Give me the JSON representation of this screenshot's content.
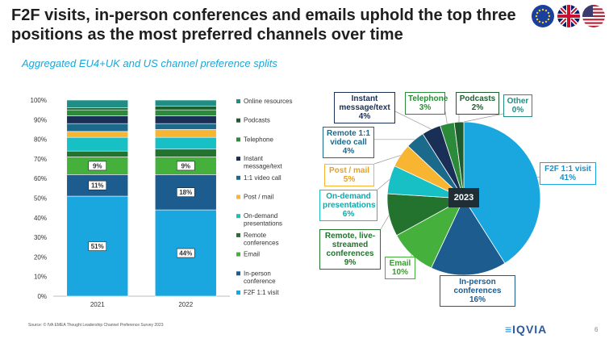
{
  "header": {
    "title": "F2F visits, in-person conferences and emails uphold the top three positions as the most preferred channels over time",
    "subtitle": "Aggregated EU4+UK and US channel preference splits"
  },
  "footer": {
    "source": "Source: © IVA EMEA Thought Leadership Channel Preference Survey 2023",
    "logo_text": "IQVIA",
    "page_number": "6"
  },
  "colors": {
    "f2f": "#1aa7e0",
    "inperson": "#1c5c8e",
    "email": "#45b03b",
    "remote": "#23732f",
    "ondemand": "#16c0c4",
    "post": "#f7b531",
    "remote11": "#1b6a8b",
    "instant": "#1a2f55",
    "telephone": "#2c8b3a",
    "podcasts": "#1e5e2e",
    "online": "#1e8e86"
  },
  "chart_data": [
    {
      "type": "bar",
      "stacked": true,
      "categories": [
        "2021",
        "2022"
      ],
      "ylim": [
        0,
        100
      ],
      "yticks": [
        "0%",
        "10%",
        "20%",
        "30%",
        "40%",
        "50%",
        "60%",
        "70%",
        "80%",
        "90%",
        "100%"
      ],
      "legend_position": "right",
      "series": [
        {
          "name": "F2F 1:1 visit",
          "color_key": "f2f",
          "values": [
            51,
            44
          ],
          "labels": [
            "51%",
            "44%"
          ]
        },
        {
          "name": "In-person conference",
          "color_key": "inperson",
          "values": [
            11,
            18
          ],
          "labels": [
            "11%",
            "18%"
          ]
        },
        {
          "name": "Email",
          "color_key": "email",
          "values": [
            9,
            9
          ],
          "labels": [
            "9%",
            "9%"
          ]
        },
        {
          "name": "Remote conferences",
          "color_key": "remote",
          "values": [
            3,
            4
          ],
          "labels": [
            "",
            ""
          ]
        },
        {
          "name": "On-demand presentations",
          "color_key": "ondemand",
          "values": [
            7,
            6
          ],
          "labels": [
            "",
            ""
          ]
        },
        {
          "name": "Post / mail",
          "color_key": "post",
          "values": [
            3,
            4
          ],
          "labels": [
            "",
            ""
          ]
        },
        {
          "name": "1:1 video call",
          "color_key": "remote11",
          "values": [
            4,
            3
          ],
          "labels": [
            "",
            ""
          ]
        },
        {
          "name": "Instant message/text",
          "color_key": "instant",
          "values": [
            4,
            4
          ],
          "labels": [
            "",
            ""
          ]
        },
        {
          "name": "Telephone",
          "color_key": "telephone",
          "values": [
            3,
            3
          ],
          "labels": [
            "",
            ""
          ]
        },
        {
          "name": "Podcasts",
          "color_key": "podcasts",
          "values": [
            1,
            2
          ],
          "labels": [
            "",
            ""
          ]
        },
        {
          "name": "Online resources",
          "color_key": "online",
          "values": [
            4,
            3
          ],
          "labels": [
            "",
            ""
          ]
        }
      ],
      "legend_order": [
        "Online resources",
        "Podcasts",
        "Telephone",
        "Instant message/text",
        "1:1 video call",
        "Post / mail",
        "On-demand presentations",
        "Remote conferences",
        "Email",
        "In-person conference",
        "F2F 1:1 visit"
      ]
    },
    {
      "type": "pie",
      "center_label": "2023",
      "slices": [
        {
          "name": "F2F 1:1 visit",
          "value": 41,
          "label": "41%",
          "color_key": "f2f"
        },
        {
          "name": "In-person conferences",
          "value": 16,
          "label": "16%",
          "color_key": "inperson"
        },
        {
          "name": "Email",
          "value": 10,
          "label": "10%",
          "color_key": "email"
        },
        {
          "name": "Remote, live-streamed conferences",
          "value": 9,
          "label": "9%",
          "color_key": "remote"
        },
        {
          "name": "On-demand presentations",
          "value": 6,
          "label": "6%",
          "color_key": "ondemand"
        },
        {
          "name": "Post / mail",
          "value": 5,
          "label": "5%",
          "color_key": "post"
        },
        {
          "name": "Remote 1:1 video call",
          "value": 4,
          "label": "4%",
          "color_key": "remote11"
        },
        {
          "name": "Instant message/text",
          "value": 4,
          "label": "4%",
          "color_key": "instant"
        },
        {
          "name": "Telephone",
          "value": 3,
          "label": "3%",
          "color_key": "telephone"
        },
        {
          "name": "Podcasts",
          "value": 2,
          "label": "2%",
          "color_key": "podcasts"
        },
        {
          "name": "Other",
          "value": 0,
          "label": "0%",
          "color_key": "online"
        }
      ]
    }
  ]
}
